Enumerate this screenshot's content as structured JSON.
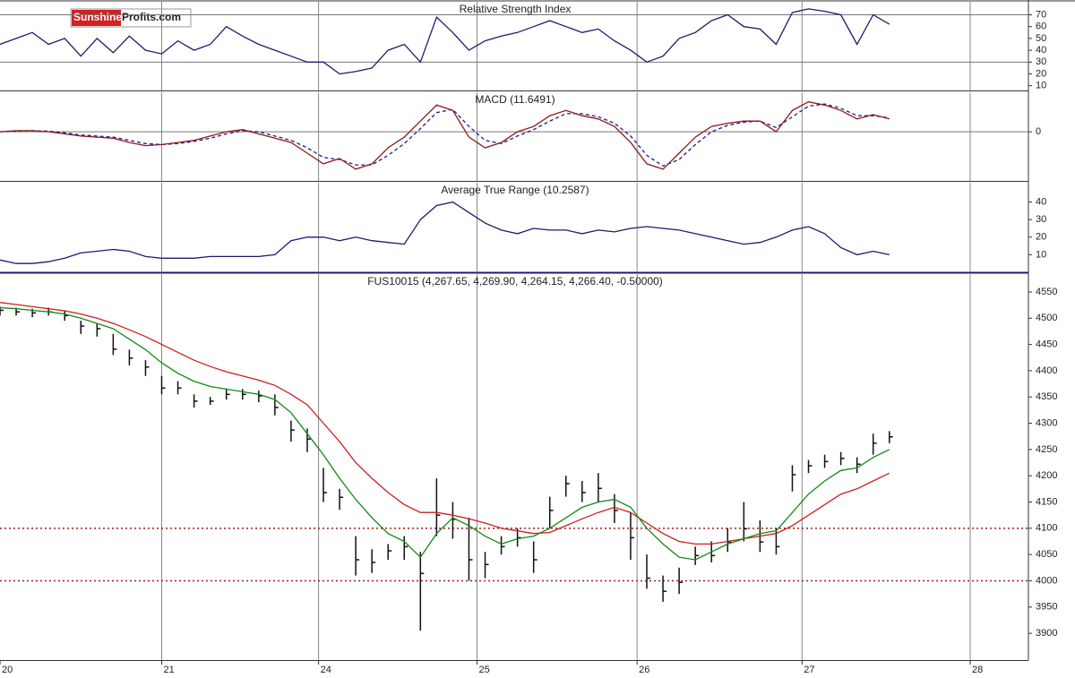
{
  "logo": {
    "part1": "Sunshine",
    "part2": "Profits.com"
  },
  "chart_data": [
    {
      "type": "line",
      "title": "Relative Strength Index",
      "x": [
        0,
        0.1,
        0.2,
        0.3,
        0.4,
        0.5,
        0.6,
        0.7,
        0.8,
        0.9,
        1,
        1.1,
        1.2,
        1.3,
        1.4,
        1.5,
        1.6,
        1.7,
        1.8,
        1.9,
        2,
        2.1,
        2.2,
        2.3,
        2.4,
        2.5,
        2.6,
        2.7,
        2.8,
        2.9,
        3,
        3.1,
        3.2,
        3.3,
        3.4,
        3.5,
        3.6,
        3.7,
        3.8,
        3.9,
        4,
        4.1,
        4.2,
        4.3,
        4.4,
        4.5,
        4.6,
        4.7,
        4.8,
        4.9,
        5,
        5.1,
        5.2,
        5.3,
        5.4,
        5.5
      ],
      "lines": [
        {
          "color": "#1c1c6e",
          "values": [
            45,
            50,
            55,
            45,
            50,
            35,
            50,
            38,
            52,
            40,
            37,
            48,
            40,
            45,
            60,
            52,
            45,
            40,
            35,
            30,
            30,
            20,
            22,
            25,
            40,
            45,
            30,
            68,
            55,
            40,
            48,
            52,
            55,
            60,
            65,
            60,
            55,
            58,
            48,
            40,
            30,
            35,
            50,
            55,
            65,
            70,
            60,
            58,
            45,
            72,
            75,
            73,
            70,
            45,
            70,
            62
          ]
        }
      ],
      "reference_lines": [
        70,
        30
      ],
      "reference_color": "#777777",
      "ylim": [
        6,
        81
      ],
      "yticks": [
        70,
        60,
        50,
        40,
        30,
        20,
        10
      ]
    },
    {
      "type": "line",
      "title": "MACD (11.6491)",
      "x": [
        0,
        0.1,
        0.2,
        0.3,
        0.4,
        0.5,
        0.6,
        0.7,
        0.8,
        0.9,
        1,
        1.1,
        1.2,
        1.3,
        1.4,
        1.5,
        1.6,
        1.7,
        1.8,
        1.9,
        2,
        2.1,
        2.2,
        2.3,
        2.4,
        2.5,
        2.6,
        2.7,
        2.8,
        2.9,
        3,
        3.1,
        3.2,
        3.3,
        3.4,
        3.5,
        3.6,
        3.7,
        3.8,
        3.9,
        4,
        4.1,
        4.2,
        4.3,
        4.4,
        4.5,
        4.6,
        4.7,
        4.8,
        4.9,
        5,
        5.1,
        5.2,
        5.3,
        5.4,
        5.5
      ],
      "lines": [
        {
          "color": "#1c1c9e",
          "dashed": true,
          "values": [
            0,
            0.5,
            1,
            0.5,
            -1,
            -3,
            -4,
            -5,
            -8,
            -11,
            -12,
            -11,
            -9,
            -6,
            -2,
            1,
            0,
            -4,
            -8,
            -15,
            -24,
            -26,
            -31,
            -31,
            -22,
            -11,
            3,
            18,
            21,
            5,
            -8,
            -11,
            -4,
            2,
            10,
            17,
            17,
            14,
            8,
            -4,
            -22,
            -32,
            -26,
            -12,
            0,
            6,
            9,
            10,
            4,
            14,
            24,
            26,
            22,
            15,
            15,
            13
          ]
        },
        {
          "color": "#8b1a1a",
          "dashed": false,
          "values": [
            0,
            1,
            1,
            0,
            -2,
            -4,
            -5,
            -6,
            -10,
            -13,
            -12,
            -10,
            -8,
            -4,
            0,
            2,
            -2,
            -6,
            -10,
            -20,
            -30,
            -25,
            -35,
            -30,
            -15,
            -5,
            10,
            25,
            20,
            -5,
            -15,
            -10,
            0,
            5,
            15,
            20,
            15,
            12,
            5,
            -10,
            -30,
            -35,
            -20,
            -5,
            5,
            8,
            10,
            10,
            0,
            20,
            28,
            25,
            20,
            12,
            16,
            12
          ]
        }
      ],
      "reference_lines": [
        0
      ],
      "reference_color": "#777777",
      "ylim": [
        -46,
        37
      ],
      "yticks": [
        0
      ]
    },
    {
      "type": "line",
      "title": "Average True Range (10.2587)",
      "x": [
        0,
        0.1,
        0.2,
        0.3,
        0.4,
        0.5,
        0.6,
        0.7,
        0.8,
        0.9,
        1,
        1.1,
        1.2,
        1.3,
        1.4,
        1.5,
        1.6,
        1.7,
        1.8,
        1.9,
        2,
        2.1,
        2.2,
        2.3,
        2.4,
        2.5,
        2.6,
        2.7,
        2.8,
        2.9,
        3,
        3.1,
        3.2,
        3.3,
        3.4,
        3.5,
        3.6,
        3.7,
        3.8,
        3.9,
        4,
        4.1,
        4.2,
        4.3,
        4.4,
        4.5,
        4.6,
        4.7,
        4.8,
        4.9,
        5,
        5.1,
        5.2,
        5.3,
        5.4,
        5.5
      ],
      "lines": [
        {
          "color": "#1c1c6e",
          "values": [
            7,
            5,
            5,
            6,
            8,
            11,
            12,
            13,
            12,
            9,
            8,
            8,
            8,
            9,
            9,
            9,
            9,
            10,
            18,
            20,
            20,
            18,
            20,
            18,
            17,
            16,
            30,
            38,
            40,
            34,
            28,
            24,
            22,
            25,
            24,
            24,
            22,
            24,
            23,
            25,
            26,
            25,
            24,
            22,
            20,
            18,
            16,
            17,
            20,
            24,
            26,
            22,
            14,
            10,
            12,
            10
          ]
        }
      ],
      "ylim": [
        0,
        51
      ],
      "yticks": [
        40,
        30,
        20,
        10
      ]
    },
    {
      "type": "ohlc",
      "title": "FUS10015 (4,267.65, 4,269.90, 4,264.15, 4,266.40, -0.50000)",
      "x": [
        0,
        0.1,
        0.2,
        0.3,
        0.4,
        0.5,
        0.6,
        0.7,
        0.8,
        0.9,
        1,
        1.1,
        1.2,
        1.3,
        1.4,
        1.5,
        1.6,
        1.7,
        1.8,
        1.9,
        2,
        2.1,
        2.2,
        2.3,
        2.4,
        2.5,
        2.6,
        2.7,
        2.8,
        2.9,
        3,
        3.1,
        3.2,
        3.3,
        3.4,
        3.5,
        3.6,
        3.7,
        3.8,
        3.9,
        4,
        4.1,
        4.2,
        4.3,
        4.4,
        4.5,
        4.6,
        4.7,
        4.8,
        4.9,
        5,
        5.1,
        5.2,
        5.3,
        5.4,
        5.5
      ],
      "high": [
        4522,
        4520,
        4518,
        4520,
        4515,
        4495,
        4490,
        4470,
        4440,
        4420,
        4390,
        4380,
        4355,
        4350,
        4365,
        4365,
        4362,
        4355,
        4305,
        4290,
        4215,
        4175,
        4085,
        4060,
        4070,
        4085,
        4055,
        4195,
        4150,
        4120,
        4055,
        4085,
        4100,
        4075,
        4160,
        4200,
        4190,
        4205,
        4165,
        4130,
        4050,
        4010,
        4025,
        4065,
        4075,
        4100,
        4150,
        4115,
        4100,
        4220,
        4230,
        4240,
        4245,
        4235,
        4280,
        4285
      ],
      "low": [
        4505,
        4505,
        4502,
        4505,
        4495,
        4470,
        4465,
        4430,
        4410,
        4390,
        4355,
        4355,
        4330,
        4335,
        4345,
        4345,
        4340,
        4315,
        4265,
        4245,
        4150,
        4135,
        4010,
        4015,
        4040,
        4040,
        3905,
        4085,
        4080,
        4000,
        4005,
        4050,
        4065,
        4015,
        4100,
        4160,
        4150,
        4150,
        4110,
        4040,
        3985,
        3960,
        3975,
        4030,
        4035,
        4055,
        4075,
        4055,
        4050,
        4170,
        4205,
        4215,
        4220,
        4205,
        4240,
        4262
      ],
      "close": [
        4515,
        4512,
        4510,
        4512,
        4505,
        4485,
        4480,
        4441,
        4424,
        4407,
        4367,
        4367,
        4342,
        4342,
        4355,
        4355,
        4352,
        4330,
        4287,
        4270,
        4168,
        4159,
        4040,
        4035,
        4057,
        4065,
        4014,
        4125,
        4117,
        4040,
        4031,
        4065,
        4082,
        4040,
        4134,
        4185,
        4168,
        4176,
        4134,
        4082,
        4005,
        3980,
        3997,
        4048,
        4048,
        4074,
        4099,
        4074,
        4065,
        4202,
        4219,
        4227,
        4233,
        4222,
        4262,
        4274
      ],
      "color": "#111111",
      "lines": [
        {
          "color": "#cc1f1f",
          "values": [
            4530,
            4526,
            4522,
            4518,
            4514,
            4508,
            4500,
            4490,
            4478,
            4465,
            4450,
            4435,
            4420,
            4408,
            4398,
            4390,
            4382,
            4372,
            4355,
            4335,
            4300,
            4265,
            4225,
            4195,
            4168,
            4145,
            4130,
            4130,
            4125,
            4118,
            4110,
            4100,
            4095,
            4090,
            4092,
            4105,
            4118,
            4130,
            4140,
            4130,
            4110,
            4090,
            4075,
            4070,
            4070,
            4075,
            4080,
            4085,
            4090,
            4105,
            4125,
            4145,
            4165,
            4175,
            4190,
            4205
          ]
        },
        {
          "color": "#138a13",
          "values": [
            4520,
            4518,
            4515,
            4512,
            4508,
            4500,
            4490,
            4480,
            4460,
            4440,
            4415,
            4395,
            4380,
            4370,
            4365,
            4360,
            4355,
            4345,
            4320,
            4280,
            4240,
            4195,
            4155,
            4120,
            4090,
            4075,
            4045,
            4090,
            4120,
            4105,
            4085,
            4070,
            4080,
            4085,
            4100,
            4120,
            4140,
            4150,
            4155,
            4140,
            4100,
            4070,
            4045,
            4040,
            4055,
            4070,
            4080,
            4090,
            4095,
            4130,
            4165,
            4190,
            4210,
            4215,
            4235,
            4250
          ]
        }
      ],
      "reference_lines": [
        4100,
        4000
      ],
      "reference_color": "#a01c1c",
      "reference_dotted": true,
      "ylim": [
        3849,
        4584
      ],
      "yticks": [
        4550,
        4500,
        4450,
        4400,
        4350,
        4300,
        4250,
        4200,
        4150,
        4100,
        4050,
        4000,
        3950,
        3900
      ],
      "xlim": [
        0,
        6.36
      ],
      "xticks": [
        {
          "value": 0,
          "label": "20"
        },
        {
          "value": 1,
          "label": "21"
        },
        {
          "value": 1.97,
          "label": "24"
        },
        {
          "value": 2.95,
          "label": "25"
        },
        {
          "value": 3.94,
          "label": "26"
        },
        {
          "value": 4.96,
          "label": "27"
        },
        {
          "value": 6,
          "label": "28"
        }
      ]
    }
  ]
}
